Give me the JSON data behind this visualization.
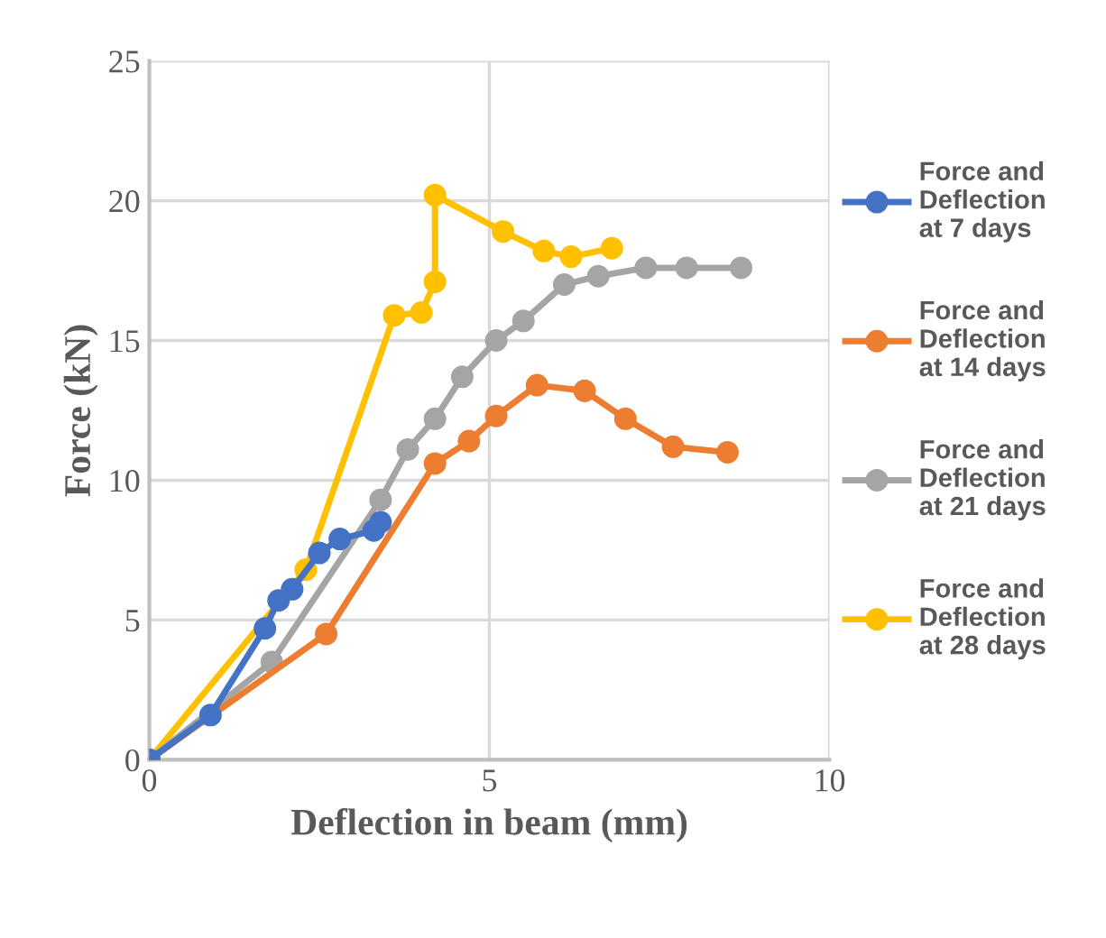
{
  "chart_data": {
    "type": "line",
    "xlabel": "Deflection in beam (mm)",
    "ylabel": "Force (kN)",
    "xlim": [
      0,
      10
    ],
    "ylim": [
      0,
      25
    ],
    "xticks": [
      0,
      5,
      10
    ],
    "yticks": [
      0,
      5,
      10,
      15,
      20,
      25
    ],
    "grid": true,
    "legend": "right",
    "marker": "circle",
    "line_style": "solid",
    "series": [
      {
        "name": "Force and Deflection at 7 days",
        "color": "#4472c4",
        "x": [
          0,
          0.9,
          1.7,
          1.9,
          2.1,
          2.5,
          2.8,
          3.3,
          3.4
        ],
        "values": [
          0,
          1.6,
          4.7,
          5.7,
          6.1,
          7.4,
          7.9,
          8.2,
          8.5
        ]
      },
      {
        "name": "Force and Deflection at 14 days",
        "color": "#ed7d31",
        "x": [
          0,
          2.6,
          4.2,
          4.7,
          5.1,
          5.7,
          6.4,
          7.0,
          7.7,
          8.5
        ],
        "values": [
          0,
          4.5,
          10.6,
          11.4,
          12.3,
          13.4,
          13.2,
          12.2,
          11.2,
          11.0
        ]
      },
      {
        "name": "Force and Deflection at 21 days",
        "color": "#a5a5a5",
        "x": [
          0,
          1.8,
          3.4,
          3.8,
          4.2,
          4.6,
          5.1,
          5.5,
          6.1,
          6.6,
          7.3,
          7.9,
          8.7
        ],
        "values": [
          0,
          3.5,
          9.3,
          11.1,
          12.2,
          13.7,
          15.0,
          15.7,
          17.0,
          17.3,
          17.6,
          17.6,
          17.6
        ]
      },
      {
        "name": "Force and Deflection at 28 days",
        "color": "#ffc000",
        "x": [
          0,
          2.3,
          3.6,
          4.0,
          4.2,
          4.2,
          5.2,
          5.8,
          6.2,
          6.8
        ],
        "values": [
          0,
          6.8,
          15.9,
          16.0,
          17.1,
          20.2,
          18.9,
          18.2,
          18.0,
          18.3
        ]
      }
    ]
  }
}
